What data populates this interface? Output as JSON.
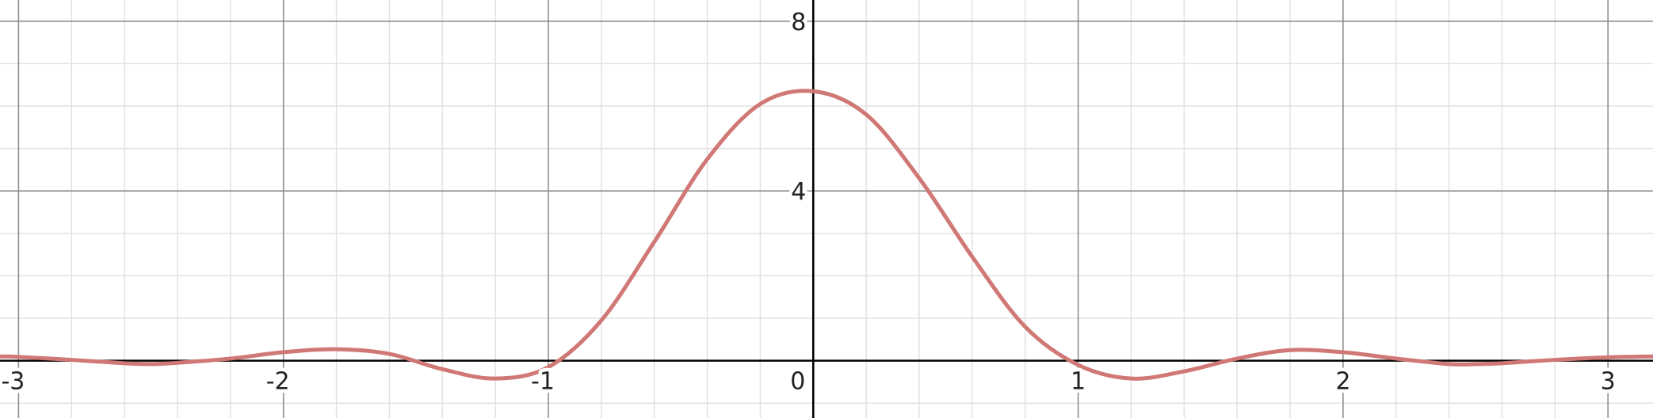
{
  "chart_data": {
    "type": "line",
    "title": "",
    "xlabel": "",
    "ylabel": "",
    "xlim": [
      -3.07,
      3.17
    ],
    "ylim": [
      -1.35,
      8.5
    ],
    "grid": true,
    "x_major_step": 1,
    "x_minor_step": 0.2,
    "y_major_step": 4,
    "y_minor_step": 1,
    "x_tick_labels": [
      "-3",
      "-2",
      "-1",
      "0",
      "1",
      "2",
      "3"
    ],
    "y_tick_labels": [
      "4",
      "8"
    ],
    "series": [
      {
        "name": "",
        "color": "#d07875",
        "x": [
          -3.07,
          -3.0,
          -2.8,
          -2.6,
          -2.5,
          -2.4,
          -2.2,
          -2.0,
          -1.8,
          -1.6,
          -1.4,
          -1.2,
          -1.0,
          -0.8,
          -0.6,
          -0.4,
          -0.2,
          0.0,
          0.2,
          0.4,
          0.6,
          0.8,
          1.0,
          1.2,
          1.4,
          1.6,
          1.8,
          2.0,
          2.2,
          2.4,
          2.5,
          2.6,
          2.8,
          3.0,
          3.17
        ],
        "y": [
          0.1,
          0.09,
          0.02,
          -0.06,
          -0.08,
          -0.05,
          0.05,
          0.2,
          0.27,
          0.16,
          -0.2,
          -0.42,
          -0.15,
          0.95,
          2.8,
          4.75,
          6.05,
          6.35,
          5.8,
          4.3,
          2.45,
          0.8,
          -0.1,
          -0.42,
          -0.25,
          0.05,
          0.25,
          0.2,
          0.05,
          -0.08,
          -0.08,
          -0.06,
          0.02,
          0.08,
          0.1
        ]
      }
    ]
  }
}
